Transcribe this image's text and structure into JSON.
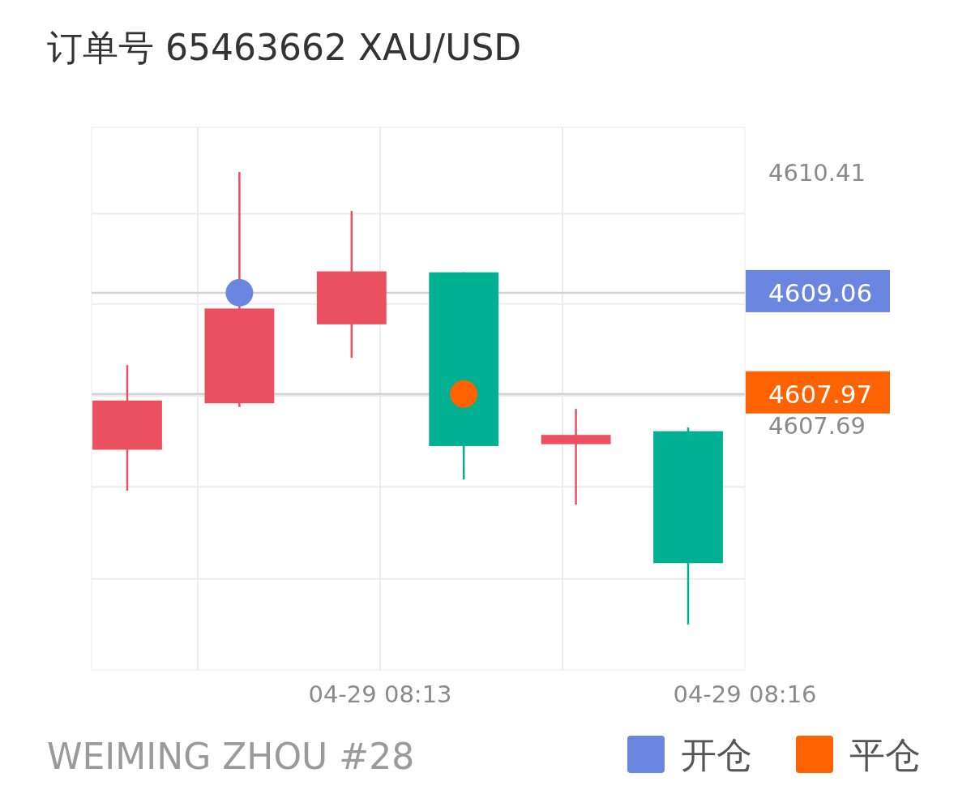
{
  "chart_data": {
    "type": "candlestick",
    "title": "订单号 65463662    XAU/USD",
    "categories": [
      null,
      null,
      null,
      null,
      null,
      null
    ],
    "ohlc": [
      [
        4607.37,
        4608.28,
        4606.93,
        4607.9
      ],
      [
        4607.87,
        4610.36,
        4607.83,
        4608.89
      ],
      [
        4608.72,
        4609.94,
        4608.36,
        4609.29
      ],
      [
        4609.28,
        4609.28,
        4607.05,
        4607.41
      ],
      [
        4607.43,
        4607.81,
        4606.78,
        4607.53
      ],
      [
        4607.57,
        4607.61,
        4605.49,
        4606.15
      ]
    ],
    "colors": [
      "#eb5061",
      "#eb5061",
      "#eb5061",
      "#00b092",
      "#eb5061",
      "#00b092"
    ],
    "series": [
      {
        "name": "开仓",
        "type": "scatter",
        "color": "#6b86e0",
        "values": [
          null,
          4609.06,
          null,
          null,
          null,
          null
        ]
      },
      {
        "name": "平仓",
        "type": "scatter",
        "color": "#ff6200",
        "values": [
          null,
          null,
          null,
          4607.97,
          null,
          null
        ]
      }
    ],
    "ref_lines": [
      {
        "axis": "y",
        "value": 4609.06,
        "label": "4609.06",
        "color": "#d2d2d2"
      },
      {
        "axis": "y",
        "value": 4607.97,
        "label": "4607.97",
        "color": "#d2d2d2"
      }
    ],
    "ylim": [
      4605.0,
      4610.84
    ],
    "yticks": [
      {
        "value": 4605.98,
        "label": null
      },
      {
        "value": 4606.97,
        "label": null
      },
      {
        "value": 4607.69,
        "label": "4607.69"
      },
      {
        "value": 4607.95,
        "label": null
      },
      {
        "value": 4608.94,
        "label": null
      },
      {
        "value": 4609.91,
        "label": null
      },
      {
        "value": 4610.41,
        "label": "4610.41"
      }
    ],
    "grid": true,
    "legend": "bottom right",
    "annotations": [
      "04-29 08:13",
      "04-29 08:16",
      "WEIMING ZHOU #28"
    ]
  }
}
